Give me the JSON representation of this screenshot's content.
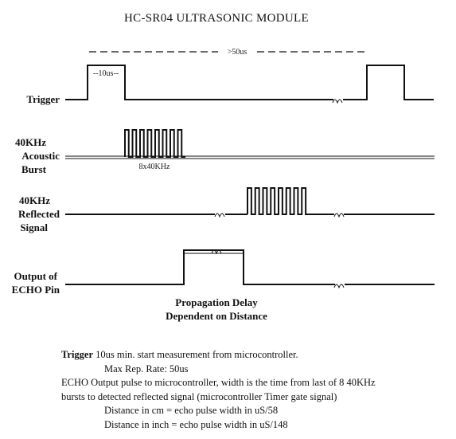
{
  "title": "HC-SR04 ULTRASONIC MODULE",
  "period_label": ">50us",
  "trigger_width_label": "--10us--",
  "burst_label": "8x40KHz",
  "signals": {
    "trigger": "Trigger",
    "acoustic_1": "40KHz",
    "acoustic_2": "Acoustic",
    "acoustic_3": "Burst",
    "reflected_1": "40KHz",
    "reflected_2": "Reflected",
    "reflected_3": "Signal",
    "echo_1": "Output of",
    "echo_2": "ECHO Pin"
  },
  "caption_1": "Propagation Delay",
  "caption_2": "Dependent on Distance",
  "notes": {
    "trigger_term": "Trigger",
    "trigger_text": " 10us min. start measurement from microcontroller.",
    "max_rate": "Max Rep. Rate: 50us",
    "echo_term": "ECHO",
    "echo_text": " Output pulse to microcontroller, width is the time from last of 8 40KHz",
    "echo_text_2": "bursts to detected reflected signal (microcontroller Timer gate signal)",
    "distance_cm": "Distance in cm = echo pulse width in uS/58",
    "distance_inch": "Distance in inch = echo pulse width in uS/148"
  }
}
